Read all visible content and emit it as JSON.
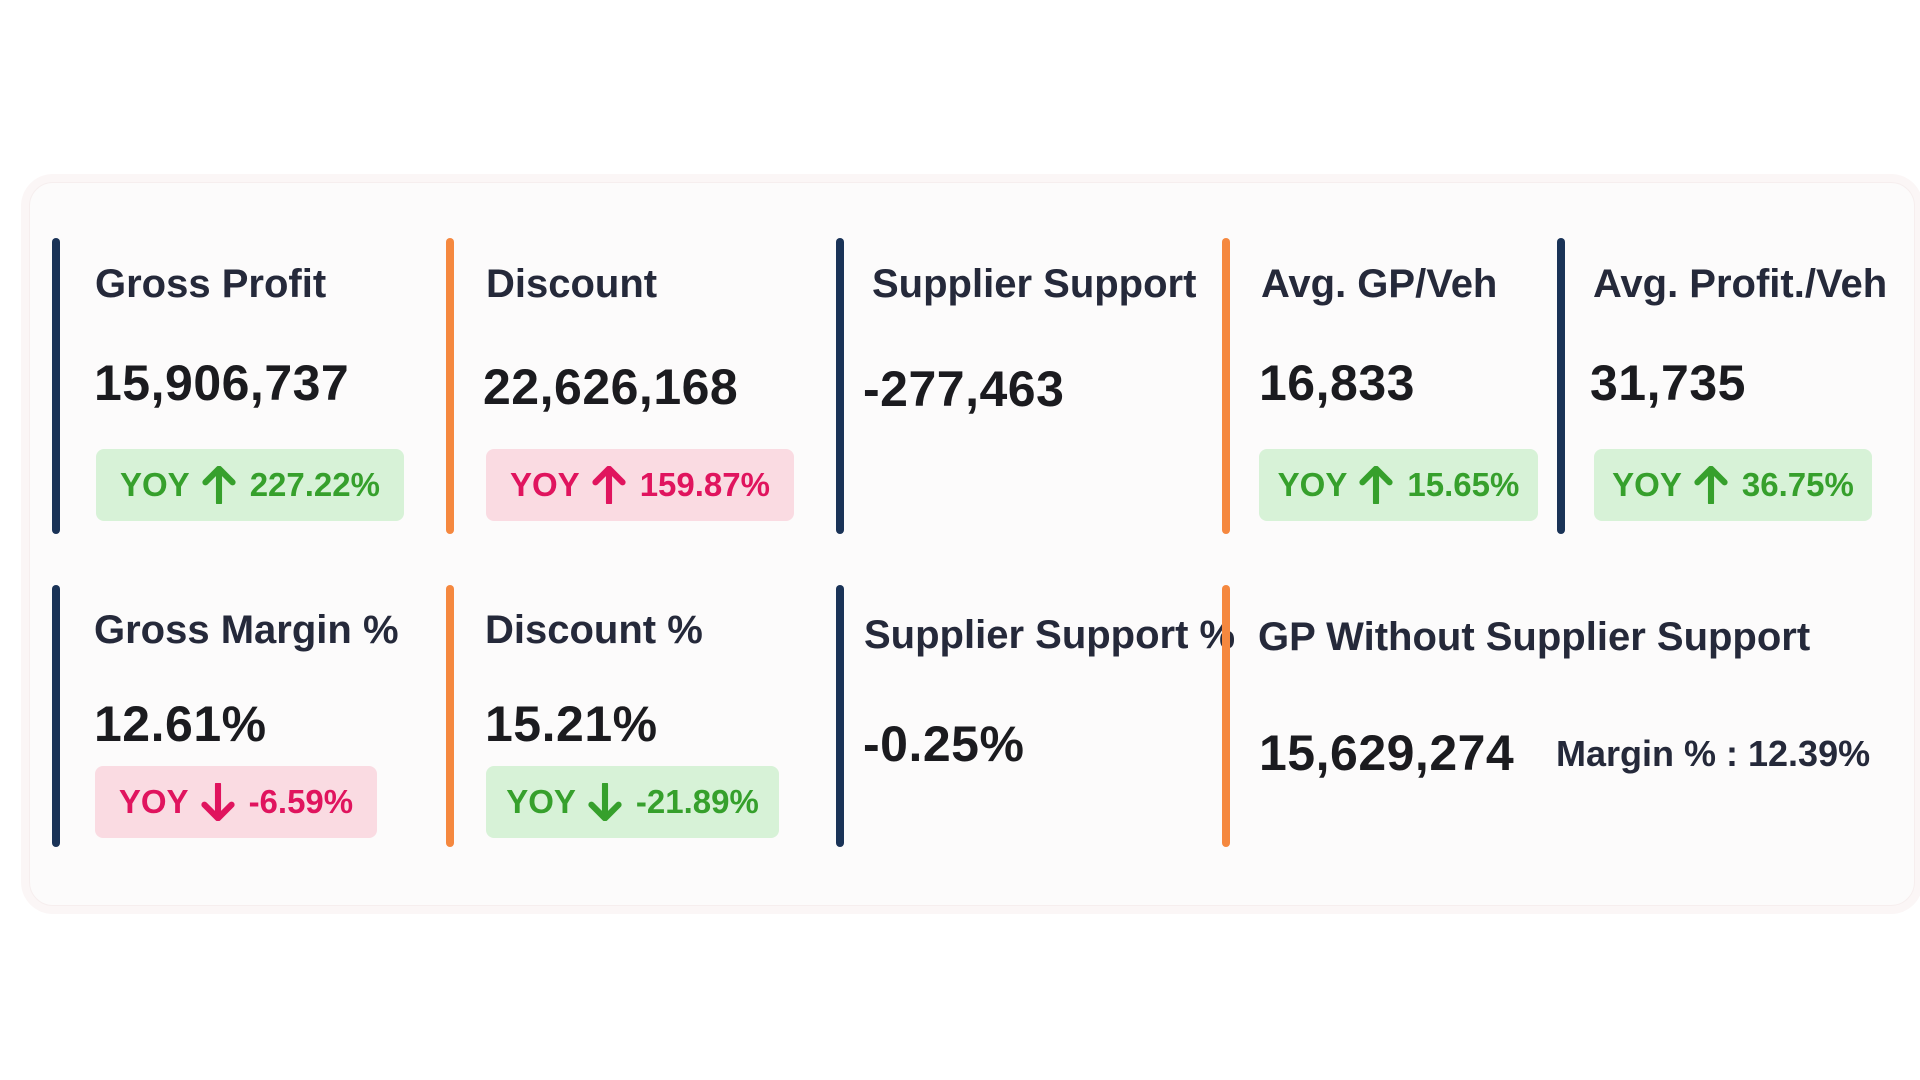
{
  "colors": {
    "navy": "#1a3357",
    "orange": "#f5883f",
    "positive_badge_bg": "#d7f2d7",
    "positive_text": "#36a02c",
    "negative_badge_bg": "#fadbe2",
    "negative_text": "#e0145e"
  },
  "cards": {
    "gross_profit": {
      "title": "Gross Profit",
      "value": "15,906,737",
      "yoy_label": "YOY",
      "yoy_value": "227.22%",
      "arrow": "arrow-up-icon"
    },
    "discount": {
      "title": "Discount",
      "value": "22,626,168",
      "yoy_label": "YOY",
      "yoy_value": "159.87%",
      "arrow": "arrow-up-icon"
    },
    "supplier_support": {
      "title": "Supplier Support",
      "value": "-277,463"
    },
    "avg_gp_veh": {
      "title": "Avg. GP/Veh",
      "value": "16,833",
      "yoy_label": "YOY",
      "yoy_value": "15.65%",
      "arrow": "arrow-up-icon"
    },
    "avg_profit_veh": {
      "title": "Avg. Profit./Veh",
      "value": "31,735",
      "yoy_label": "YOY",
      "yoy_value": "36.75%",
      "arrow": "arrow-up-icon"
    },
    "gross_margin_pct": {
      "title": "Gross Margin %",
      "value": "12.61%",
      "yoy_label": "YOY",
      "yoy_value": "-6.59%",
      "arrow": "arrow-down-icon"
    },
    "discount_pct": {
      "title": "Discount %",
      "value": "15.21%",
      "yoy_label": "YOY",
      "yoy_value": "-21.89%",
      "arrow": "arrow-down-icon"
    },
    "supplier_support_pct": {
      "title": "Supplier Support %",
      "value": "-0.25%"
    },
    "gp_without_supplier_support": {
      "title": "GP Without Supplier Support",
      "value": "15,629,274",
      "margin_text": "Margin % : 12.39%"
    }
  }
}
